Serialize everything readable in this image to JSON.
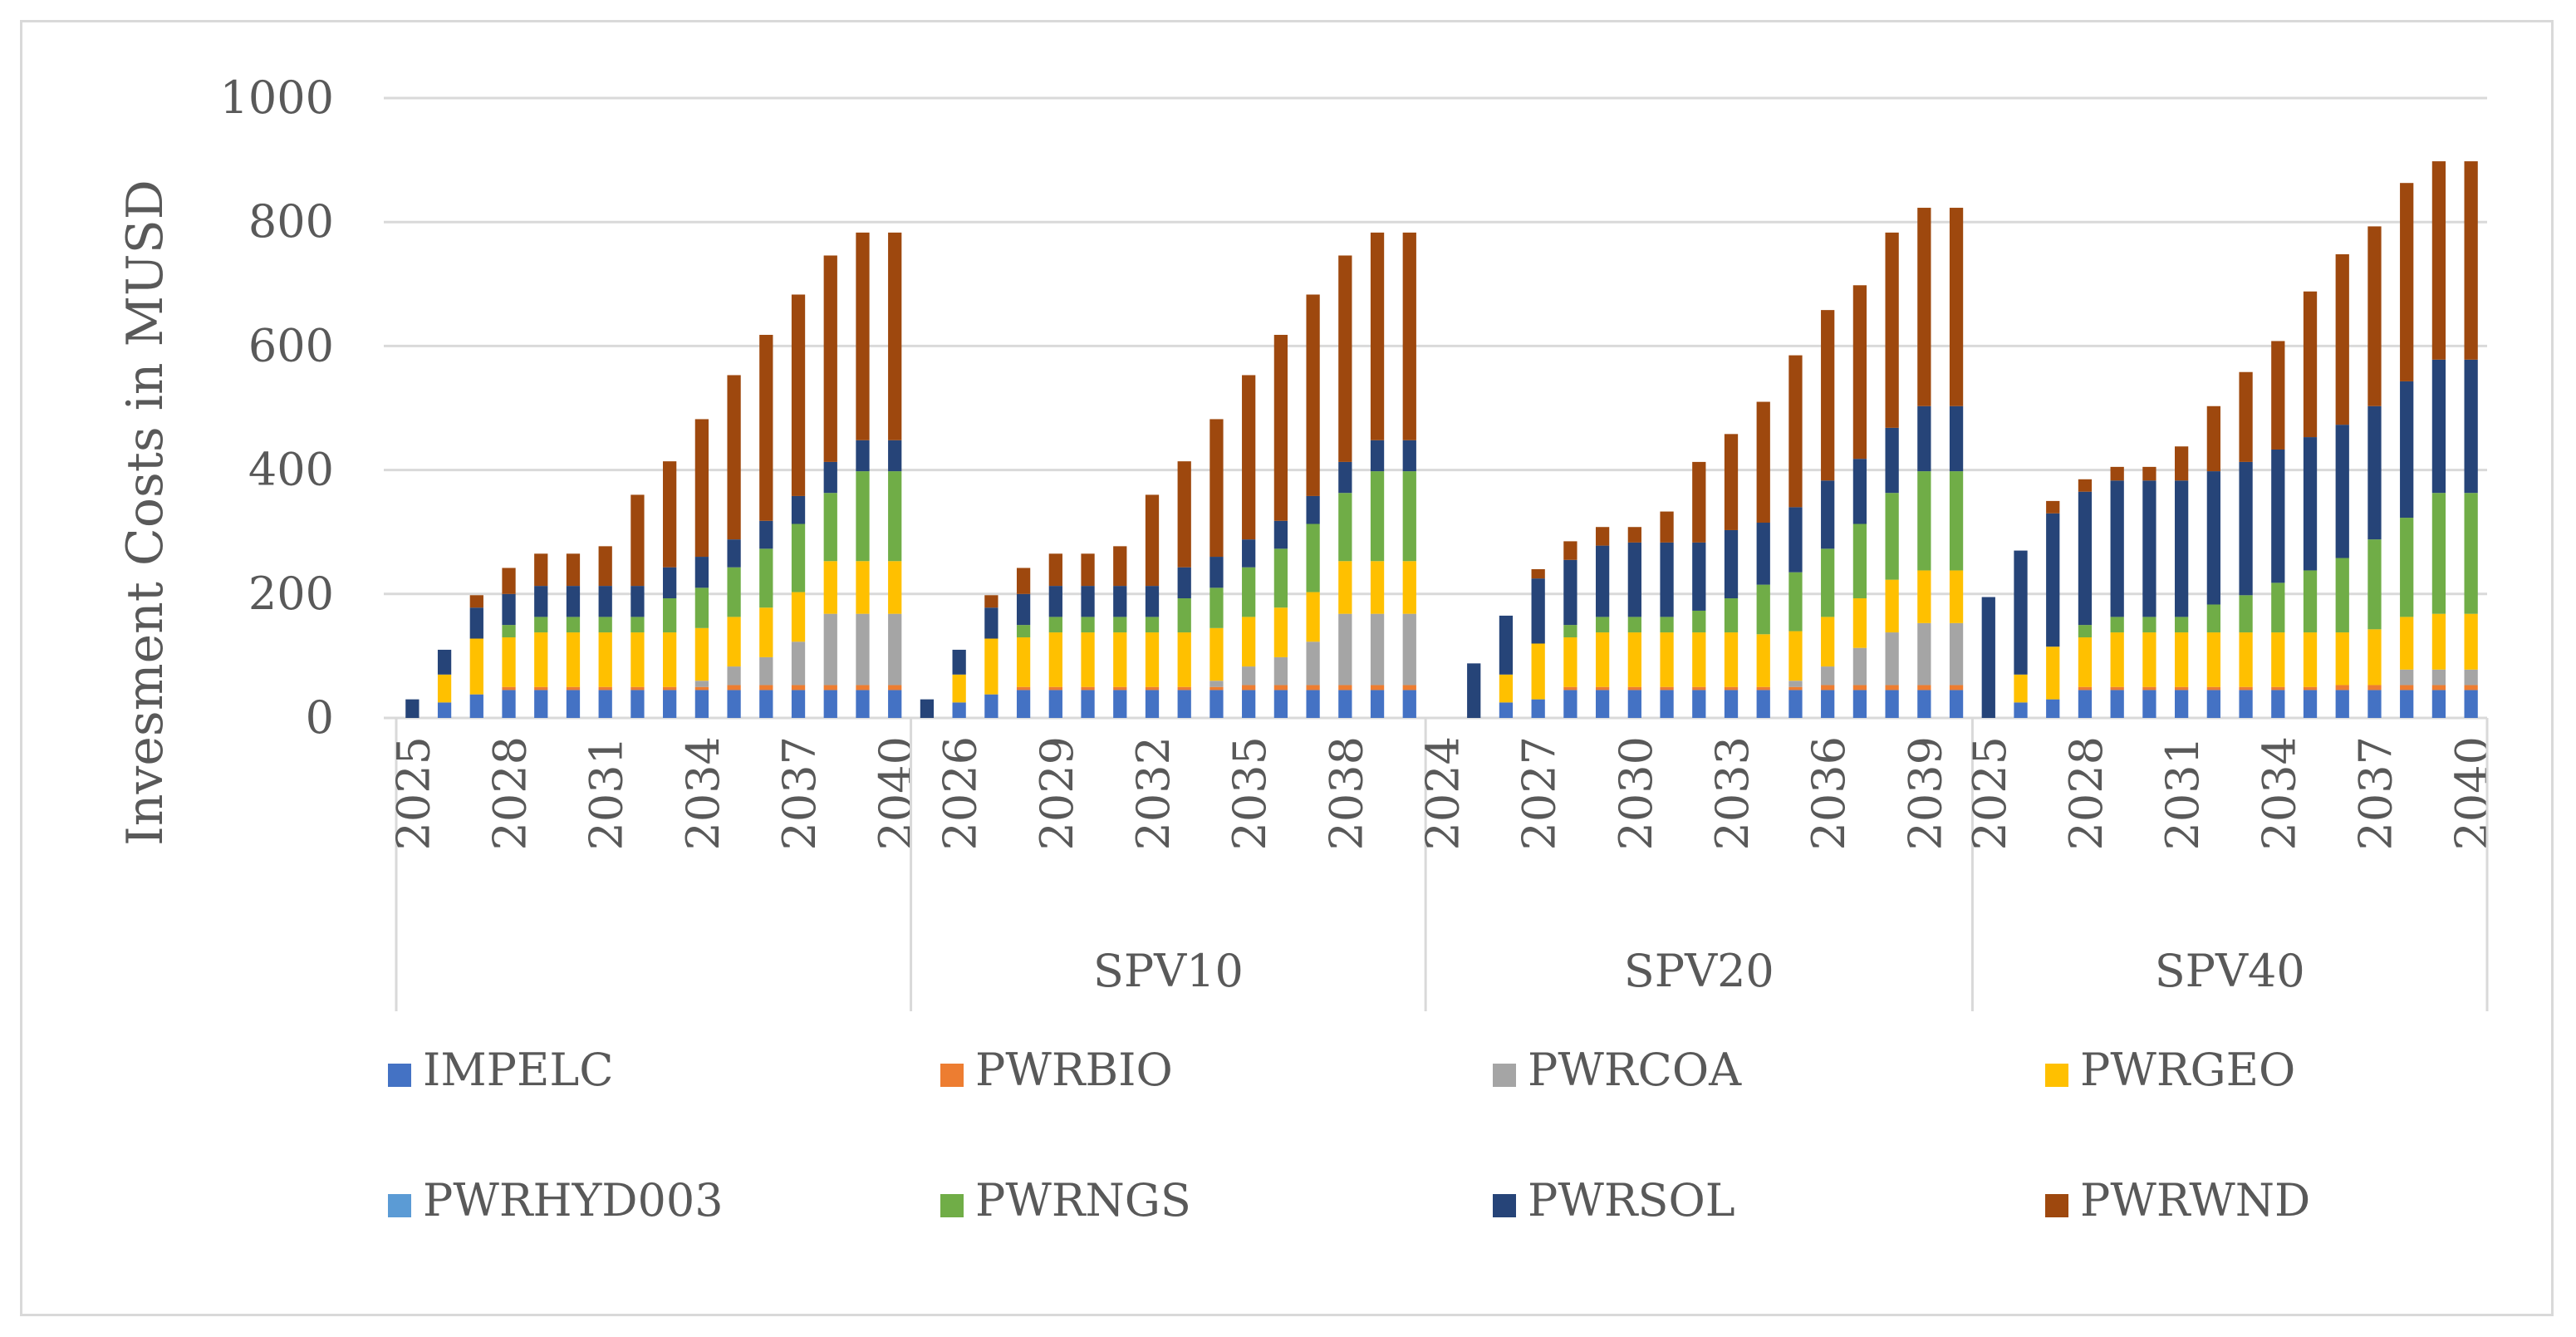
{
  "chart_data": {
    "type": "bar",
    "stacked": true,
    "title": "",
    "ylabel": "Invesment Costs in MUSD",
    "xlabel": "",
    "ylim": [
      0,
      1000
    ],
    "yticks": [
      0,
      200,
      400,
      600,
      800,
      1000
    ],
    "grid": true,
    "legend_position": "bottom",
    "series_order": [
      "IMPELC",
      "PWRBIO",
      "PWRCOA",
      "PWRGEO",
      "PWRHYD003",
      "PWRNGS",
      "PWRSOL",
      "PWRWND"
    ],
    "colors": {
      "IMPELC": "#4472c4",
      "PWRBIO": "#ed7d31",
      "PWRCOA": "#a5a5a5",
      "PWRGEO": "#ffc000",
      "PWRHYD003": "#5b9bd5",
      "PWRNGS": "#70ad47",
      "PWRSOL": "#264478",
      "PWRWND": "#9e480e"
    },
    "groups": [
      {
        "name": "",
        "years": [
          2025,
          2026,
          2027,
          2028,
          2029,
          2030,
          2031,
          2032,
          2033,
          2034,
          2035,
          2036,
          2037,
          2038,
          2039,
          2040
        ],
        "tick_labels": [
          "2025",
          "2028",
          "2031",
          "2034",
          "2037",
          "2040"
        ],
        "series": {
          "IMPELC": [
            0,
            25,
            38,
            45,
            45,
            45,
            45,
            45,
            45,
            45,
            45,
            45,
            45,
            45,
            45,
            45
          ],
          "PWRBIO": [
            0,
            0,
            0,
            5,
            5,
            5,
            5,
            5,
            5,
            5,
            8,
            8,
            8,
            8,
            8,
            8
          ],
          "PWRCOA": [
            0,
            0,
            0,
            0,
            0,
            0,
            0,
            0,
            0,
            10,
            30,
            45,
            70,
            115,
            115,
            115
          ],
          "PWRGEO": [
            0,
            45,
            90,
            80,
            88,
            88,
            88,
            88,
            88,
            85,
            80,
            80,
            80,
            85,
            85,
            85
          ],
          "PWRHYD003": [
            0,
            0,
            0,
            0,
            0,
            0,
            0,
            0,
            0,
            0,
            0,
            0,
            0,
            0,
            0,
            0
          ],
          "PWRNGS": [
            0,
            0,
            0,
            20,
            25,
            25,
            25,
            25,
            55,
            65,
            80,
            95,
            110,
            110,
            145,
            145
          ],
          "PWRSOL": [
            30,
            40,
            50,
            50,
            50,
            50,
            50,
            50,
            50,
            50,
            45,
            45,
            45,
            50,
            50,
            50
          ],
          "PWRWND": [
            0,
            0,
            20,
            42,
            52,
            52,
            64,
            147,
            171,
            222,
            265,
            300,
            325,
            333,
            335,
            335
          ]
        }
      },
      {
        "name": "SPV10",
        "years": [
          2025,
          2026,
          2027,
          2028,
          2029,
          2030,
          2031,
          2032,
          2033,
          2034,
          2035,
          2036,
          2037,
          2038,
          2039,
          2040
        ],
        "tick_labels": [
          "2026",
          "2029",
          "2032",
          "2035",
          "2038"
        ],
        "series": {
          "IMPELC": [
            0,
            25,
            38,
            45,
            45,
            45,
            45,
            45,
            45,
            45,
            45,
            45,
            45,
            45,
            45,
            45
          ],
          "PWRBIO": [
            0,
            0,
            0,
            5,
            5,
            5,
            5,
            5,
            5,
            5,
            8,
            8,
            8,
            8,
            8,
            8
          ],
          "PWRCOA": [
            0,
            0,
            0,
            0,
            0,
            0,
            0,
            0,
            0,
            10,
            30,
            45,
            70,
            115,
            115,
            115
          ],
          "PWRGEO": [
            0,
            45,
            90,
            80,
            88,
            88,
            88,
            88,
            88,
            85,
            80,
            80,
            80,
            85,
            85,
            85
          ],
          "PWRHYD003": [
            0,
            0,
            0,
            0,
            0,
            0,
            0,
            0,
            0,
            0,
            0,
            0,
            0,
            0,
            0,
            0
          ],
          "PWRNGS": [
            0,
            0,
            0,
            20,
            25,
            25,
            25,
            25,
            55,
            65,
            80,
            95,
            110,
            110,
            145,
            145
          ],
          "PWRSOL": [
            30,
            40,
            50,
            50,
            50,
            50,
            50,
            50,
            50,
            50,
            45,
            45,
            45,
            50,
            50,
            50
          ],
          "PWRWND": [
            0,
            0,
            20,
            42,
            52,
            52,
            64,
            147,
            171,
            222,
            265,
            300,
            325,
            333,
            335,
            335
          ]
        }
      },
      {
        "name": "SPV20",
        "years": [
          2024,
          2025,
          2026,
          2027,
          2028,
          2029,
          2030,
          2031,
          2032,
          2033,
          2034,
          2035,
          2036,
          2037,
          2038,
          2039,
          2040
        ],
        "tick_labels": [
          "2024",
          "2027",
          "2030",
          "2033",
          "2036",
          "2039"
        ],
        "series": {
          "IMPELC": [
            0,
            0,
            25,
            30,
            45,
            45,
            45,
            45,
            45,
            45,
            45,
            45,
            45,
            45,
            45,
            45,
            45
          ],
          "PWRBIO": [
            0,
            0,
            0,
            0,
            5,
            5,
            5,
            5,
            5,
            5,
            5,
            5,
            8,
            8,
            8,
            8,
            8
          ],
          "PWRCOA": [
            0,
            0,
            0,
            0,
            0,
            0,
            0,
            0,
            0,
            0,
            0,
            10,
            30,
            60,
            85,
            100,
            100
          ],
          "PWRGEO": [
            0,
            0,
            45,
            90,
            80,
            88,
            88,
            88,
            88,
            88,
            85,
            80,
            80,
            80,
            85,
            85,
            85
          ],
          "PWRHYD003": [
            0,
            0,
            0,
            0,
            0,
            0,
            0,
            0,
            0,
            0,
            0,
            0,
            0,
            0,
            0,
            0,
            0
          ],
          "PWRNGS": [
            0,
            0,
            0,
            0,
            20,
            25,
            25,
            25,
            35,
            55,
            80,
            95,
            110,
            120,
            140,
            160,
            160
          ],
          "PWRSOL": [
            0,
            88,
            95,
            105,
            105,
            115,
            120,
            120,
            110,
            110,
            100,
            105,
            110,
            105,
            105,
            105,
            105
          ],
          "PWRWND": [
            0,
            0,
            0,
            15,
            30,
            30,
            25,
            50,
            130,
            155,
            195,
            245,
            275,
            280,
            315,
            320,
            320
          ]
        }
      },
      {
        "name": "SPV40",
        "years": [
          2025,
          2026,
          2027,
          2028,
          2029,
          2030,
          2031,
          2032,
          2033,
          2034,
          2035,
          2036,
          2037,
          2038,
          2039,
          2040
        ],
        "tick_labels": [
          "2025",
          "2028",
          "2031",
          "2034",
          "2037",
          "2040"
        ],
        "series": {
          "IMPELC": [
            0,
            25,
            30,
            45,
            45,
            45,
            45,
            45,
            45,
            45,
            45,
            45,
            45,
            45,
            45,
            45
          ],
          "PWRBIO": [
            0,
            0,
            0,
            5,
            5,
            5,
            5,
            5,
            5,
            5,
            5,
            8,
            8,
            8,
            8,
            8
          ],
          "PWRCOA": [
            0,
            0,
            0,
            0,
            0,
            0,
            0,
            0,
            0,
            0,
            0,
            0,
            0,
            25,
            25,
            25
          ],
          "PWRGEO": [
            0,
            45,
            85,
            80,
            88,
            88,
            88,
            88,
            88,
            88,
            88,
            85,
            90,
            85,
            90,
            90
          ],
          "PWRHYD003": [
            0,
            0,
            0,
            0,
            0,
            0,
            0,
            0,
            0,
            0,
            0,
            0,
            0,
            0,
            0,
            0
          ],
          "PWRNGS": [
            0,
            0,
            0,
            20,
            25,
            25,
            25,
            45,
            60,
            80,
            100,
            120,
            145,
            160,
            195,
            195
          ],
          "PWRSOL": [
            195,
            200,
            215,
            215,
            220,
            220,
            220,
            215,
            215,
            215,
            215,
            215,
            215,
            220,
            215,
            215
          ],
          "PWRWND": [
            0,
            0,
            20,
            20,
            22,
            22,
            55,
            105,
            145,
            175,
            235,
            275,
            290,
            320,
            320,
            320
          ]
        }
      }
    ]
  }
}
